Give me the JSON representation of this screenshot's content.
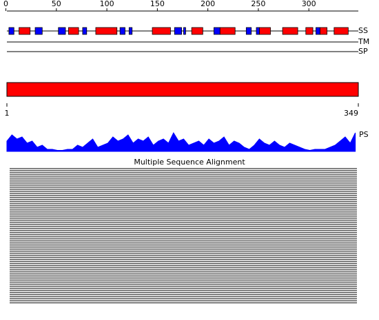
{
  "ruler": {
    "ticks": [
      0,
      50,
      100,
      150,
      200,
      250,
      300
    ]
  },
  "tracks": {
    "ss": "SS",
    "tm": "TM",
    "sp": "SP",
    "ps": "PS"
  },
  "ss": {
    "helices": [
      [
        13,
        24
      ],
      [
        62,
        72
      ],
      [
        89,
        110
      ],
      [
        145,
        163
      ],
      [
        184,
        195
      ],
      [
        212,
        227
      ],
      [
        251,
        262
      ],
      [
        274,
        289
      ],
      [
        297,
        304
      ],
      [
        311,
        318
      ],
      [
        325,
        339
      ]
    ],
    "strands": [
      [
        3,
        8
      ],
      [
        29,
        36
      ],
      [
        52,
        59
      ],
      [
        76,
        80
      ],
      [
        113,
        118
      ],
      [
        122,
        125
      ],
      [
        167,
        174
      ],
      [
        176,
        178
      ],
      [
        206,
        212
      ],
      [
        238,
        243
      ],
      [
        248,
        251
      ],
      [
        307,
        311
      ]
    ],
    "helix_color": "#ff0000",
    "strand_color": "#0000ff"
  },
  "domain": {
    "start": 1,
    "end": 349,
    "color": "#ff0000"
  },
  "profile": {
    "step": 5,
    "color": "#0000ff",
    "values": [
      0.5,
      0.8,
      0.6,
      0.7,
      0.4,
      0.5,
      0.2,
      0.3,
      0.1,
      0.1,
      0.05,
      0.05,
      0.1,
      0.1,
      0.3,
      0.2,
      0.4,
      0.6,
      0.2,
      0.3,
      0.4,
      0.7,
      0.5,
      0.6,
      0.8,
      0.4,
      0.6,
      0.5,
      0.7,
      0.3,
      0.5,
      0.6,
      0.4,
      0.9,
      0.5,
      0.6,
      0.3,
      0.4,
      0.5,
      0.3,
      0.6,
      0.4,
      0.5,
      0.7,
      0.3,
      0.5,
      0.4,
      0.2,
      0.1,
      0.3,
      0.6,
      0.4,
      0.3,
      0.5,
      0.3,
      0.2,
      0.4,
      0.3,
      0.2,
      0.1,
      0.05,
      0.1,
      0.1,
      0.1,
      0.2,
      0.3,
      0.5,
      0.7,
      0.4,
      0.9
    ]
  },
  "alignment": {
    "title": "Multiple Sequence Alignment"
  }
}
